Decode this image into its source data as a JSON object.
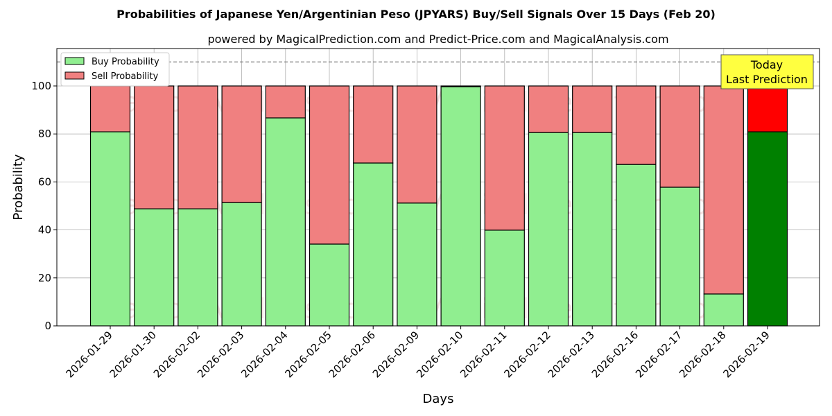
{
  "chart_data": {
    "type": "bar",
    "title": "Probabilities of Japanese Yen/Argentinian Peso (JPYARS) Buy/Sell Signals Over 15 Days (Feb 20)",
    "subtitle": "powered by MagicalPrediction.com and Predict-Price.com and MagicalAnalysis.com",
    "xlabel": "Days",
    "ylabel": "Probability",
    "ylim": [
      0,
      115.6
    ],
    "yticks": [
      0,
      20,
      40,
      60,
      80,
      100
    ],
    "grid": true,
    "legend_placement": "top-left",
    "reference_line": 110,
    "categories": [
      "2026-01-29",
      "2026-01-30",
      "2026-02-02",
      "2026-02-03",
      "2026-02-04",
      "2026-02-05",
      "2026-02-06",
      "2026-02-09",
      "2026-02-10",
      "2026-02-11",
      "2026-02-12",
      "2026-02-13",
      "2026-02-16",
      "2026-02-17",
      "2026-02-18",
      "2026-02-19"
    ],
    "series": [
      {
        "name": "Buy Probability",
        "color": "#90ee90",
        "today_color": "#008000",
        "values": [
          80.9,
          48.8,
          48.8,
          51.4,
          86.7,
          34.1,
          67.9,
          51.2,
          99.7,
          39.9,
          80.6,
          80.6,
          67.3,
          57.8,
          13.3,
          80.9
        ]
      },
      {
        "name": "Sell Probability",
        "color": "#f08080",
        "today_color": "#ff0000",
        "values": [
          19.1,
          51.2,
          51.2,
          48.6,
          13.3,
          65.9,
          32.1,
          48.8,
          0.3,
          60.1,
          19.4,
          19.4,
          32.7,
          42.2,
          86.7,
          19.1
        ]
      }
    ],
    "annotation": [
      "Today",
      "Last Prediction"
    ],
    "watermarks": [
      "MagicalAnalysis.com",
      "MagicalPrediction.com"
    ]
  }
}
